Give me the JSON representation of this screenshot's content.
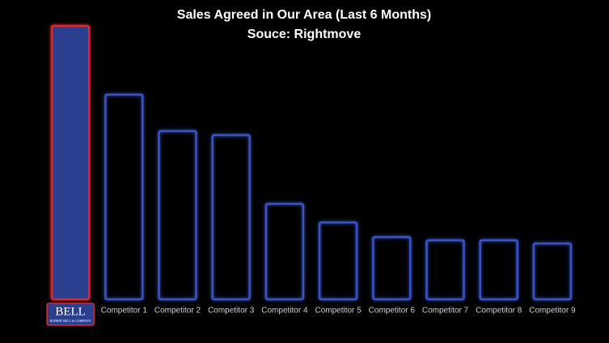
{
  "chart_data": {
    "type": "bar",
    "title": "Sales Agreed in Our Area (Last 6 Months)",
    "subtitle": "Souce: Rightmove",
    "categories": [
      "BELL",
      "Competitor 1",
      "Competitor 2",
      "Competitor 3",
      "Competitor 4",
      "Competitor 5",
      "Competitor 6",
      "Competitor 7",
      "Competitor 8",
      "Competitor 9"
    ],
    "logo_caption": "ROBERT BELL & COMPANY",
    "values": [
      338,
      253,
      208,
      203,
      118,
      95,
      77,
      73,
      73,
      69
    ],
    "ylim": [
      0,
      340
    ],
    "color": "#2c3f8e",
    "edge_color": "#3b52c4",
    "highlight_edge_color": "#e02828",
    "background": "#000000"
  }
}
